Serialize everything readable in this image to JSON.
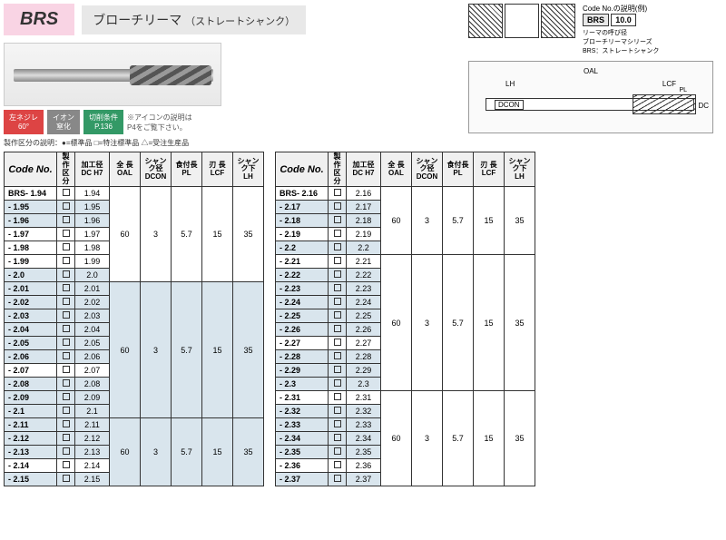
{
  "header": {
    "code": "BRS",
    "name": "ブローチリーマ",
    "sub": "（ストレートシャンク）"
  },
  "badges": {
    "b1": "左ネジレ\n60°",
    "b2": "イオン\n窒化",
    "b3": "切削条件\nP.136",
    "note": "※アイコンの説明は\nP4をご覧下さい。"
  },
  "legend": "製作区分の説明：●=標準品 □=特注標準品 △=受注生産品",
  "codeExplain": {
    "title": "Code No.の説明(例)",
    "brs": "BRS",
    "val": "10.0",
    "line1": "リーマの呼び径",
    "line2": "ブローチリーマシリーズ",
    "line3": "BRS：ストレートシャンク"
  },
  "dims": {
    "oal": "OAL",
    "lh": "LH",
    "lcf": "LCF",
    "pl": "PL",
    "dcon": "DCON",
    "dc": "DC"
  },
  "cols": {
    "code": "Code No.",
    "kubun": "製作\n区分",
    "dc": "加工径\nDC H7",
    "oal": "全 長\nOAL",
    "dcon": "シャンク径\nDCON",
    "pl": "食付長\nPL",
    "lcf": "刃 長\nLCF",
    "lh": "シャンク下\nLH"
  },
  "table1": {
    "groups": [
      {
        "oal": "60",
        "dcon": "3",
        "pl": "5.7",
        "lcf": "15",
        "lh": "35",
        "rows": [
          {
            "c": "BRS- 1.94",
            "d": "1.94",
            "g": 0
          },
          {
            "c": "-  1.95",
            "d": "1.95",
            "g": 1
          },
          {
            "c": "-  1.96",
            "d": "1.96",
            "g": 1
          },
          {
            "c": "-  1.97",
            "d": "1.97",
            "g": 0
          },
          {
            "c": "-  1.98",
            "d": "1.98",
            "g": 0
          },
          {
            "c": "-  1.99",
            "d": "1.99",
            "g": 0
          },
          {
            "c": "-  2.0",
            "d": "2.0",
            "g": 1
          }
        ]
      },
      {
        "oal": "60",
        "dcon": "3",
        "pl": "5.7",
        "lcf": "15",
        "lh": "35",
        "rows": [
          {
            "c": "-  2.01",
            "d": "2.01",
            "g": 1
          },
          {
            "c": "-  2.02",
            "d": "2.02",
            "g": 1
          },
          {
            "c": "-  2.03",
            "d": "2.03",
            "g": 1
          },
          {
            "c": "-  2.04",
            "d": "2.04",
            "g": 1
          },
          {
            "c": "-  2.05",
            "d": "2.05",
            "g": 1
          },
          {
            "c": "-  2.06",
            "d": "2.06",
            "g": 1
          },
          {
            "c": "-  2.07",
            "d": "2.07",
            "g": 0
          },
          {
            "c": "-  2.08",
            "d": "2.08",
            "g": 1
          },
          {
            "c": "-  2.09",
            "d": "2.09",
            "g": 1
          },
          {
            "c": "-  2.1",
            "d": "2.1",
            "g": 1
          }
        ]
      },
      {
        "oal": "60",
        "dcon": "3",
        "pl": "5.7",
        "lcf": "15",
        "lh": "35",
        "rows": [
          {
            "c": "-  2.11",
            "d": "2.11",
            "g": 1
          },
          {
            "c": "-  2.12",
            "d": "2.12",
            "g": 1
          },
          {
            "c": "-  2.13",
            "d": "2.13",
            "g": 1
          },
          {
            "c": "-  2.14",
            "d": "2.14",
            "g": 0
          },
          {
            "c": "-  2.15",
            "d": "2.15",
            "g": 1
          }
        ]
      }
    ]
  },
  "table2": {
    "groups": [
      {
        "oal": "60",
        "dcon": "3",
        "pl": "5.7",
        "lcf": "15",
        "lh": "35",
        "rows": [
          {
            "c": "BRS- 2.16",
            "d": "2.16",
            "g": 0
          },
          {
            "c": "-  2.17",
            "d": "2.17",
            "g": 1
          },
          {
            "c": "-  2.18",
            "d": "2.18",
            "g": 1
          },
          {
            "c": "-  2.19",
            "d": "2.19",
            "g": 0
          },
          {
            "c": "-  2.2",
            "d": "2.2",
            "g": 1
          }
        ]
      },
      {
        "oal": "60",
        "dcon": "3",
        "pl": "5.7",
        "lcf": "15",
        "lh": "35",
        "rows": [
          {
            "c": "-  2.21",
            "d": "2.21",
            "g": 0
          },
          {
            "c": "-  2.22",
            "d": "2.22",
            "g": 1
          },
          {
            "c": "-  2.23",
            "d": "2.23",
            "g": 1
          },
          {
            "c": "-  2.24",
            "d": "2.24",
            "g": 1
          },
          {
            "c": "-  2.25",
            "d": "2.25",
            "g": 1
          },
          {
            "c": "-  2.26",
            "d": "2.26",
            "g": 1
          },
          {
            "c": "-  2.27",
            "d": "2.27",
            "g": 0
          },
          {
            "c": "-  2.28",
            "d": "2.28",
            "g": 1
          },
          {
            "c": "-  2.29",
            "d": "2.29",
            "g": 1
          },
          {
            "c": "-  2.3",
            "d": "2.3",
            "g": 1
          }
        ]
      },
      {
        "oal": "60",
        "dcon": "3",
        "pl": "5.7",
        "lcf": "15",
        "lh": "35",
        "rows": [
          {
            "c": "-  2.31",
            "d": "2.31",
            "g": 0
          },
          {
            "c": "-  2.32",
            "d": "2.32",
            "g": 1
          },
          {
            "c": "-  2.33",
            "d": "2.33",
            "g": 1
          },
          {
            "c": "-  2.34",
            "d": "2.34",
            "g": 1
          },
          {
            "c": "-  2.35",
            "d": "2.35",
            "g": 1
          },
          {
            "c": "-  2.36",
            "d": "2.36",
            "g": 0
          },
          {
            "c": "-  2.37",
            "d": "2.37",
            "g": 1
          }
        ]
      }
    ]
  }
}
